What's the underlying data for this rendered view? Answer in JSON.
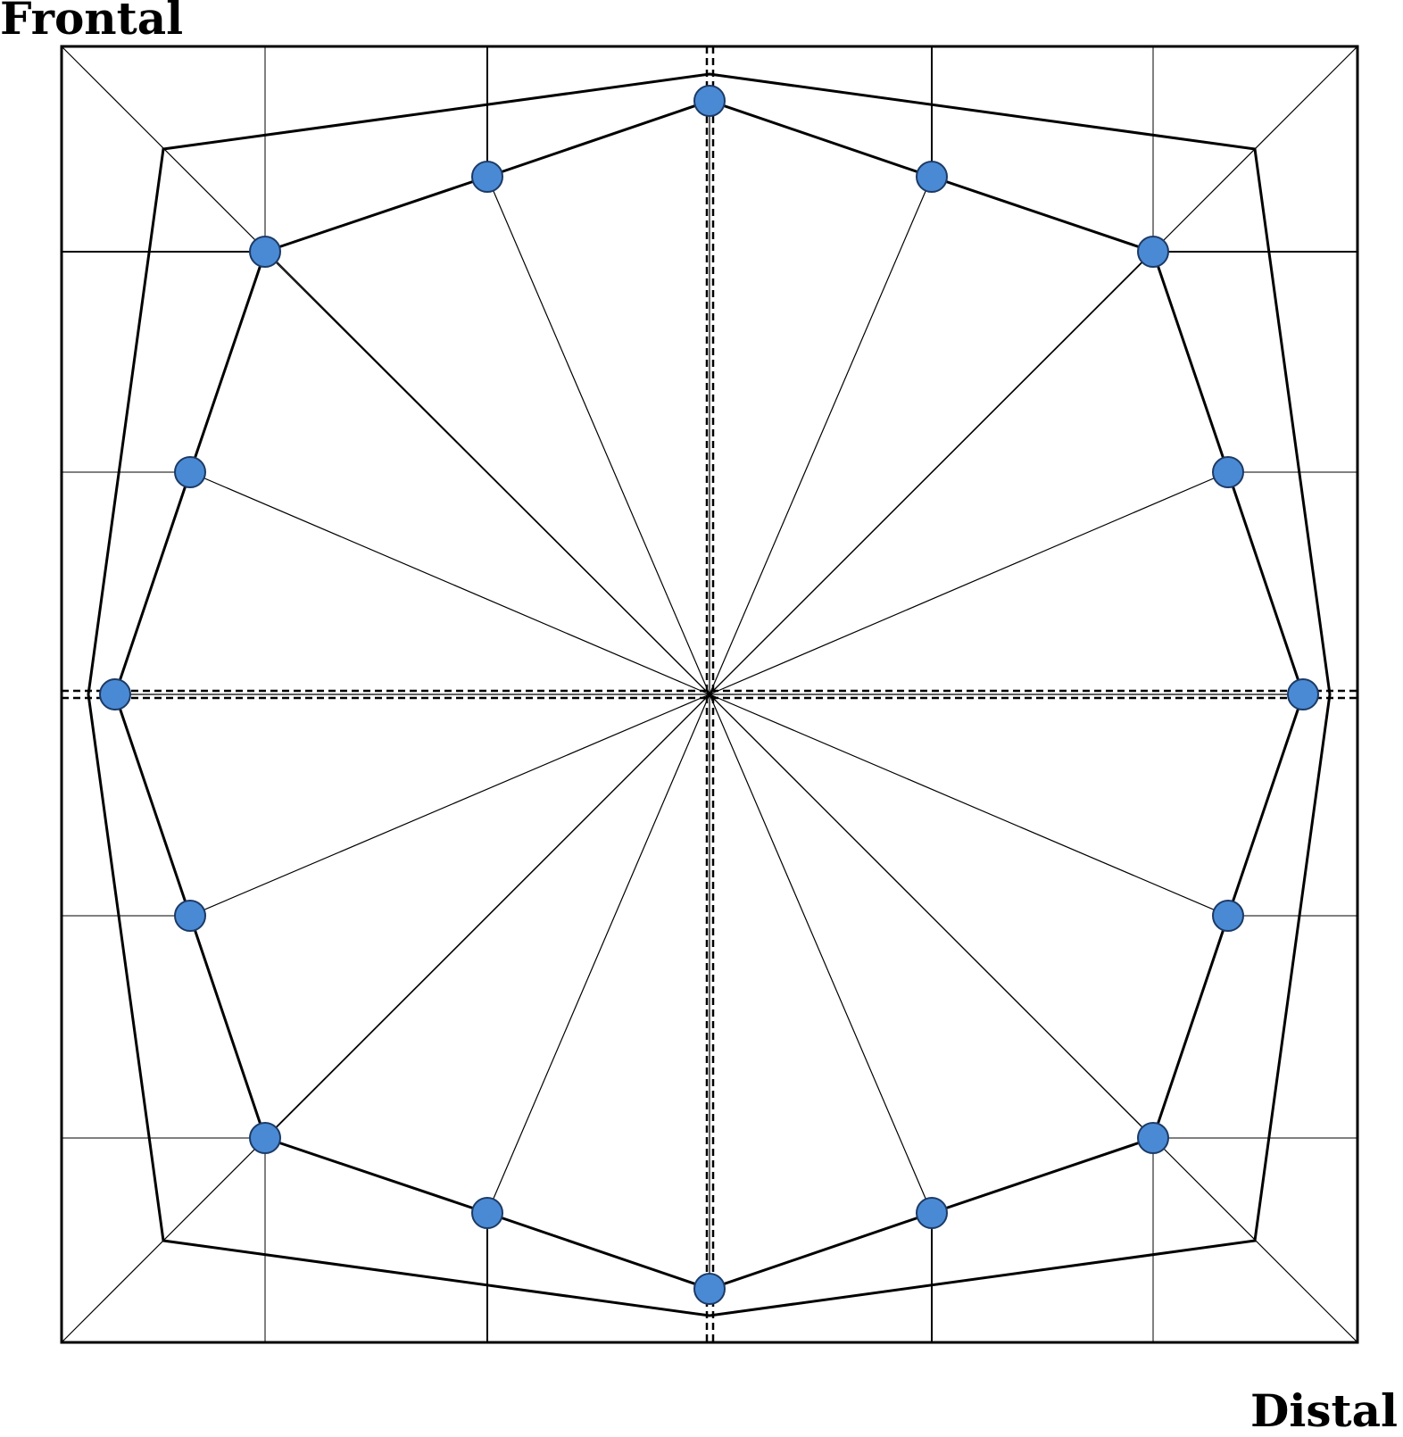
{
  "labels": {
    "top_left": "Frontal",
    "bottom_right": "Distal"
  },
  "colors": {
    "node_fill": "#4a8ad4",
    "node_stroke": "#1c3a66",
    "line": "#000000",
    "background": "#ffffff"
  }
}
